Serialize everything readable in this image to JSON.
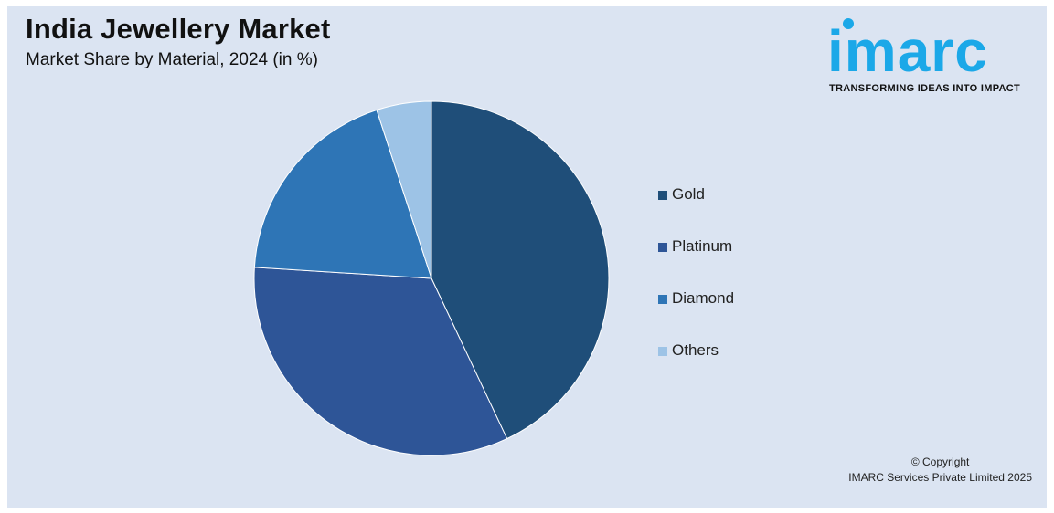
{
  "header": {
    "title": "India Jewellery Market",
    "subtitle": "Market Share by Material, 2024 (in %)"
  },
  "logo": {
    "wordmark": "imarc",
    "tagline": "TRANSFORMING IDEAS INTO IMPACT",
    "color": "#1ba8e8"
  },
  "footer": {
    "copyright_line1": "© Copyright",
    "copyright_line2": "IMARC Services Private Limited 2025"
  },
  "chart_data": {
    "type": "pie",
    "title": "India Jewellery Market",
    "subtitle": "Market Share by Material, 2024 (in %)",
    "legend_position": "right",
    "start_angle_deg": 0,
    "direction": "clockwise",
    "slices": [
      {
        "label": "Gold",
        "value": 43,
        "color": "#1f4e79"
      },
      {
        "label": "Platinum",
        "value": 33,
        "color": "#2e5597"
      },
      {
        "label": "Diamond",
        "value": 19,
        "color": "#2e75b6"
      },
      {
        "label": "Others",
        "value": 5,
        "color": "#9dc3e6"
      }
    ]
  }
}
